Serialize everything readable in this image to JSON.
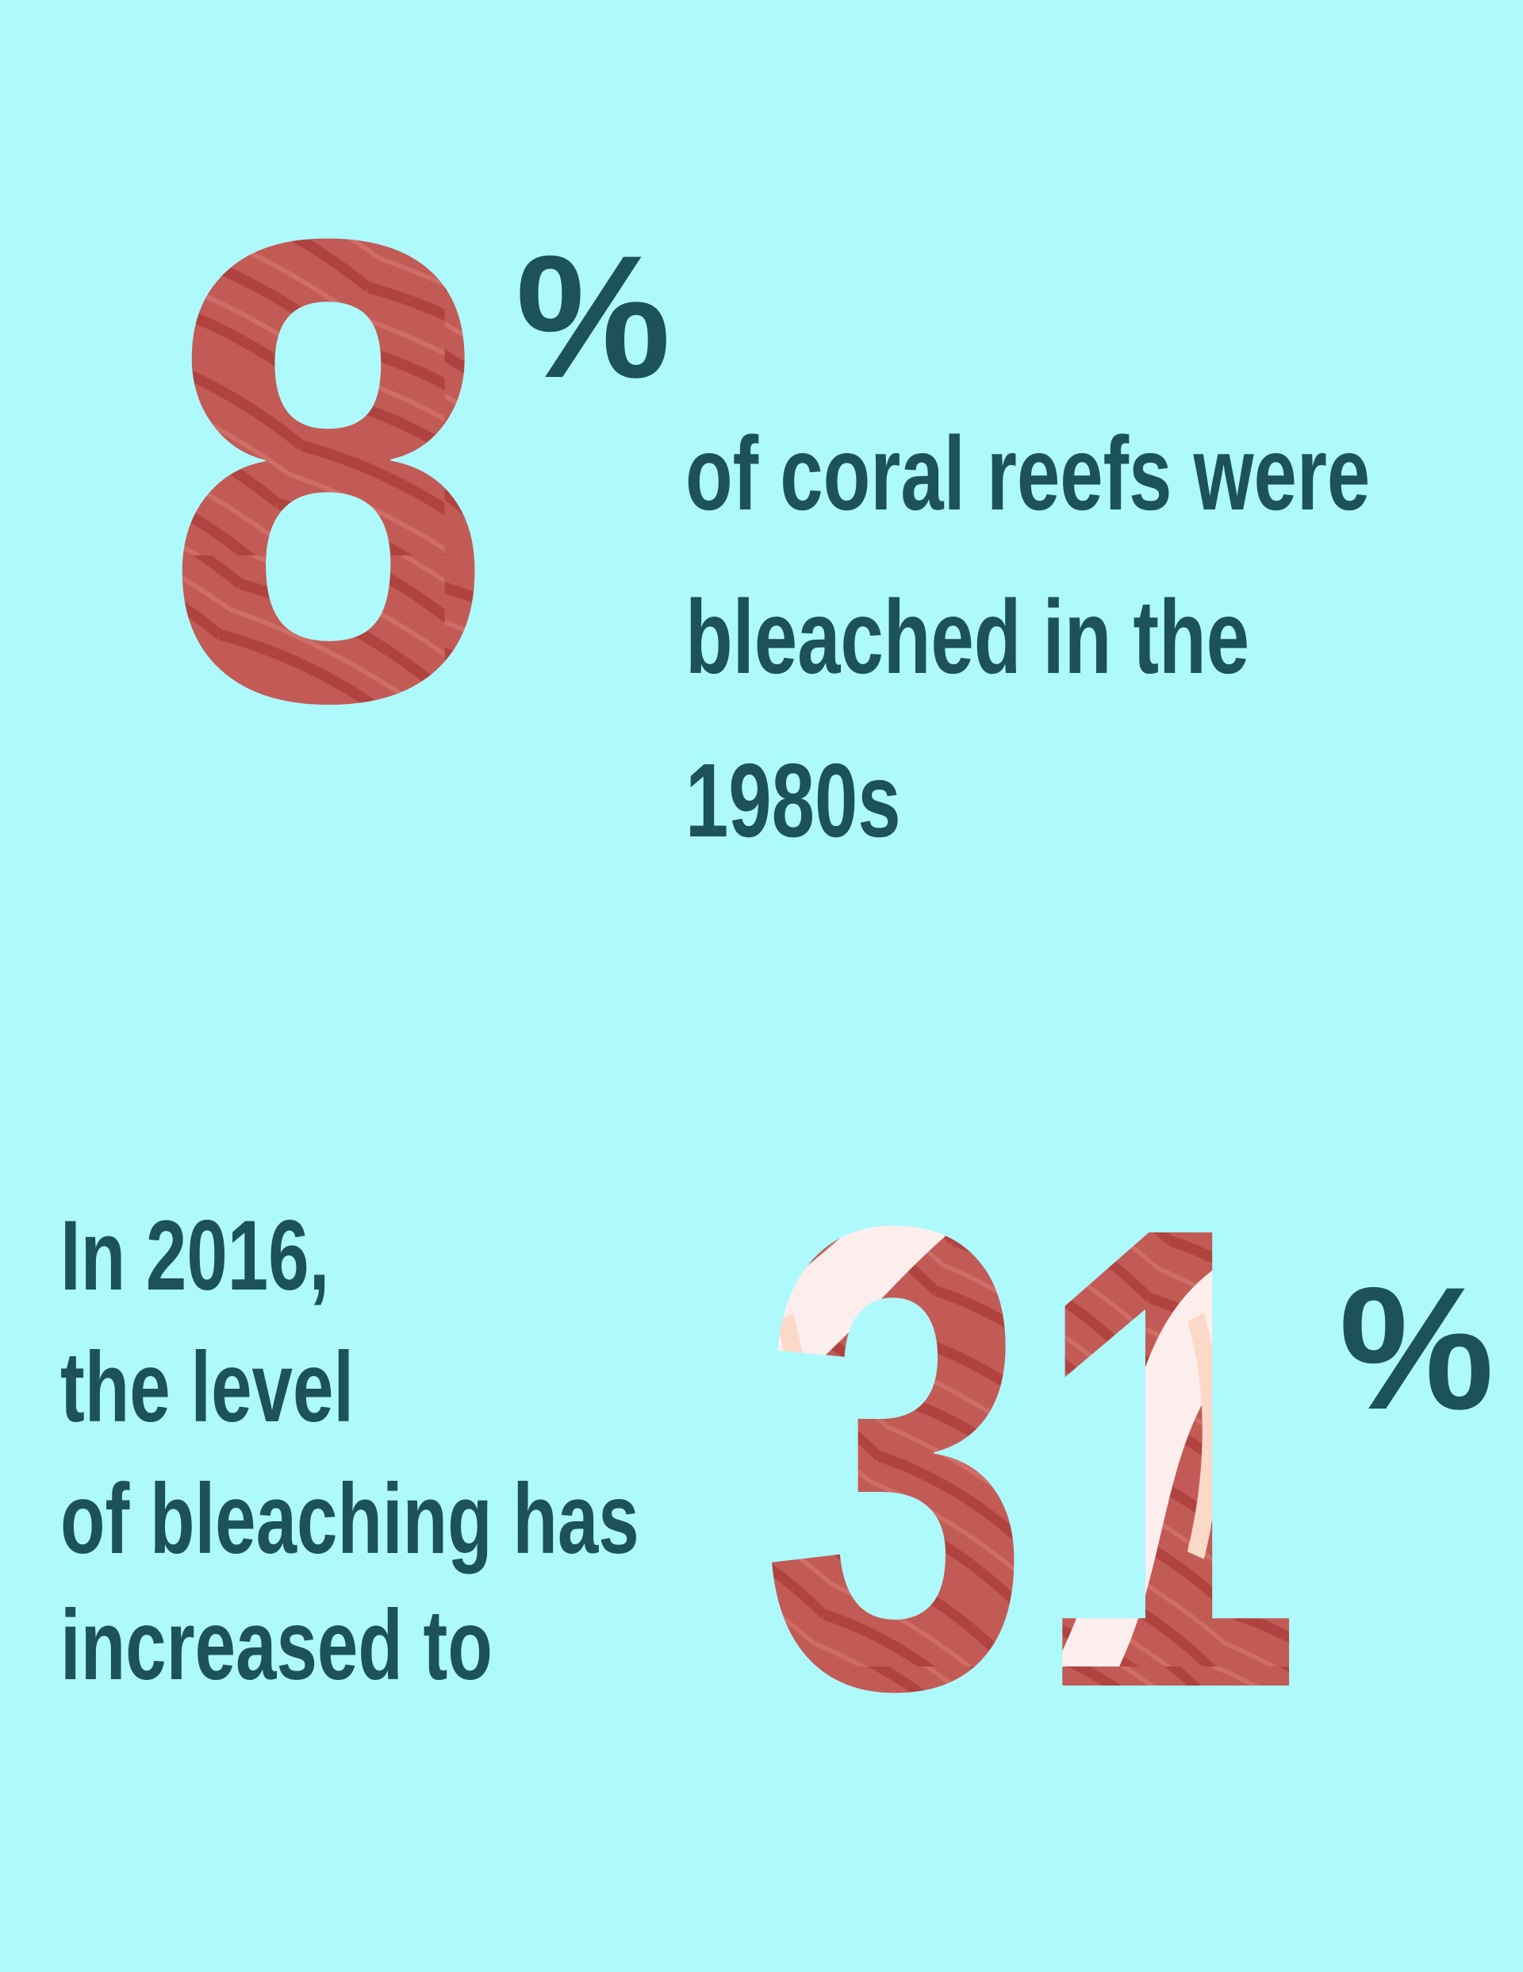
{
  "stat_1": {
    "number": "8",
    "unit": "%",
    "text_lines": [
      "of coral reefs were",
      "bleached in the",
      "1980s"
    ]
  },
  "stat_2": {
    "text_lines": [
      "In 2016,",
      "the level",
      "of bleaching has",
      "increased to"
    ],
    "number": "31",
    "unit": "%"
  }
}
